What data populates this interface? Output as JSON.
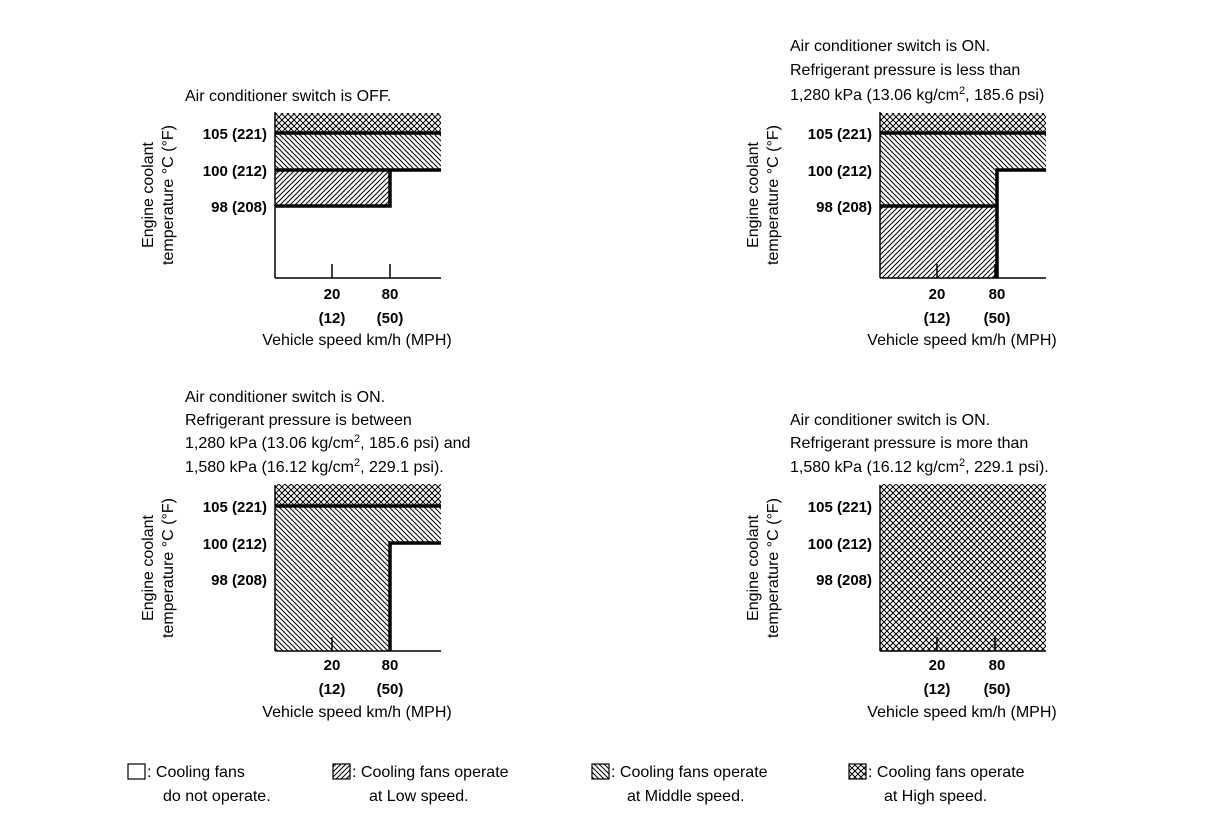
{
  "charts": [
    {
      "title": [
        "Air conditioner switch is OFF."
      ]
    },
    {
      "title": [
        "Air conditioner switch is ON.",
        "Refrigerant pressure is less than"
      ],
      "title_sup": {
        "pre": "1,280 kPa (13.06 kg/cm",
        "sup": "2",
        "post": ", 185.6 psi)"
      }
    },
    {
      "title": [
        "Air conditioner switch is ON.",
        "Refrigerant pressure is between"
      ],
      "title_sup": [
        {
          "pre": "1,280 kPa (13.06 kg/cm",
          "sup": "2",
          "post": ", 185.6 psi) and"
        },
        {
          "pre": "1,580 kPa (16.12 kg/cm",
          "sup": "2",
          "post": ", 229.1 psi)."
        }
      ]
    },
    {
      "title": [
        "Air conditioner switch is ON.",
        "Refrigerant pressure is more than"
      ],
      "title_sup": {
        "pre": "1,580 kPa (16.12 kg/cm",
        "sup": "2",
        "post": ", 229.1 psi)."
      }
    }
  ],
  "axes": {
    "y_label_1": "Engine coolant",
    "y_label_2": "temperature °C (°F)",
    "y_ticks": [
      "105 (221)",
      "100 (212)",
      "98 (208)"
    ],
    "x_ticks": [
      "20",
      "80"
    ],
    "x_ticks_mph": [
      "(12)",
      "(50)"
    ],
    "x_label": "Vehicle speed km/h (MPH)"
  },
  "legend": [
    {
      "line1": ": Cooling fans",
      "line2": "do not operate.",
      "pattern": "none"
    },
    {
      "line1": ": Cooling fans operate",
      "line2": "at Low speed.",
      "pattern": "low"
    },
    {
      "line1": ": Cooling fans operate",
      "line2": "at Middle speed.",
      "pattern": "middle"
    },
    {
      "line1": ": Cooling fans operate",
      "line2": "at High speed.",
      "pattern": "high"
    }
  ]
}
